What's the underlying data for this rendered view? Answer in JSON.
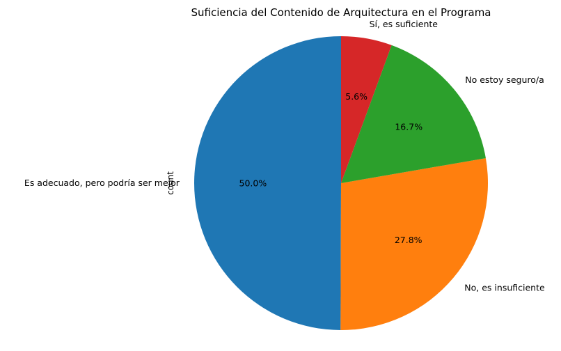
{
  "chart_data": {
    "type": "pie",
    "title": "Suficiencia del Contenido de Arquitectura en el Programa",
    "ylabel": "count",
    "start_angle_deg": 90,
    "direction": "counterclockwise",
    "slices": [
      {
        "label": "Es adecuado, pero podría ser mejor",
        "percent_label": "50.0%",
        "value": 50.0,
        "color": "#1f77b4"
      },
      {
        "label": "No, es insuficiente",
        "percent_label": "27.8%",
        "value": 27.8,
        "color": "#ff7f0e"
      },
      {
        "label": "No estoy seguro/a",
        "percent_label": "16.7%",
        "value": 16.7,
        "color": "#2ca02c"
      },
      {
        "label": "Sí, es suficiente",
        "percent_label": "5.6%",
        "value": 5.6,
        "color": "#d62728"
      }
    ]
  }
}
